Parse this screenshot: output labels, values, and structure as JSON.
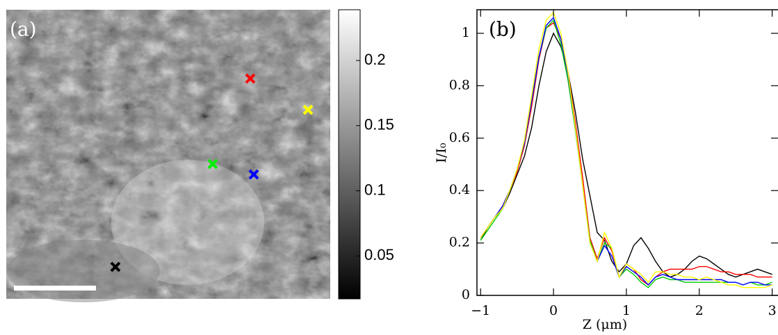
{
  "chart_data": [
    {
      "type": "image",
      "panel_label": "(a)",
      "colormap": [
        "#000000",
        "#ffffff"
      ],
      "zlim": [
        0.017,
        0.239
      ],
      "zticks": [
        0.05,
        0.1,
        0.15,
        0.2
      ]
    },
    {
      "type": "line",
      "panel_label": "(b)",
      "xlabel": "Z (μm)",
      "ylabel": "I/I₀",
      "x": [
        -1.0,
        -0.9,
        -0.8,
        -0.7,
        -0.6,
        -0.5,
        -0.4,
        -0.3,
        -0.2,
        -0.1,
        0.0,
        0.1,
        0.2,
        0.3,
        0.4,
        0.5,
        0.6,
        0.7,
        0.8,
        0.9,
        1.0,
        1.1,
        1.2,
        1.3,
        1.4,
        1.5,
        1.6,
        1.7,
        1.8,
        1.9,
        2.0,
        2.1,
        2.2,
        2.3,
        2.4,
        2.5,
        2.6,
        2.7,
        2.8,
        2.9,
        3.0
      ],
      "series": [
        {
          "color": "#000000",
          "values": [
            0.21,
            0.26,
            0.3,
            0.33,
            0.39,
            0.46,
            0.53,
            0.64,
            0.8,
            0.93,
            1.0,
            0.95,
            0.85,
            0.7,
            0.52,
            0.38,
            0.24,
            0.21,
            0.13,
            0.09,
            0.12,
            0.19,
            0.22,
            0.18,
            0.13,
            0.09,
            0.07,
            0.08,
            0.1,
            0.13,
            0.15,
            0.14,
            0.12,
            0.1,
            0.08,
            0.07,
            0.08,
            0.09,
            0.1,
            0.09,
            0.08
          ]
        },
        {
          "color": "#ff0000",
          "values": [
            0.22,
            0.26,
            0.3,
            0.34,
            0.4,
            0.47,
            0.57,
            0.72,
            0.9,
            1.02,
            1.04,
            0.98,
            0.85,
            0.66,
            0.45,
            0.22,
            0.14,
            0.22,
            0.17,
            0.07,
            0.12,
            0.1,
            0.06,
            0.04,
            0.07,
            0.09,
            0.1,
            0.1,
            0.1,
            0.1,
            0.11,
            0.11,
            0.1,
            0.09,
            0.09,
            0.08,
            0.08,
            0.08,
            0.07,
            0.07,
            0.07
          ]
        },
        {
          "color": "#00cc00",
          "values": [
            0.21,
            0.25,
            0.29,
            0.33,
            0.4,
            0.48,
            0.58,
            0.74,
            0.91,
            1.02,
            1.05,
            0.96,
            0.82,
            0.63,
            0.42,
            0.21,
            0.13,
            0.2,
            0.18,
            0.07,
            0.1,
            0.08,
            0.05,
            0.03,
            0.06,
            0.07,
            0.06,
            0.06,
            0.05,
            0.05,
            0.05,
            0.05,
            0.05,
            0.05,
            0.05,
            0.05,
            0.04,
            0.05,
            0.04,
            0.04,
            0.05
          ]
        },
        {
          "color": "#0000ff",
          "values": [
            0.22,
            0.26,
            0.3,
            0.34,
            0.4,
            0.48,
            0.58,
            0.74,
            0.91,
            1.03,
            1.06,
            0.98,
            0.84,
            0.64,
            0.42,
            0.2,
            0.13,
            0.19,
            0.15,
            0.07,
            0.11,
            0.09,
            0.07,
            0.04,
            0.07,
            0.08,
            0.07,
            0.06,
            0.06,
            0.06,
            0.06,
            0.06,
            0.06,
            0.06,
            0.05,
            0.05,
            0.04,
            0.05,
            0.05,
            0.04,
            0.04
          ]
        },
        {
          "color": "#ffff00",
          "values": [
            0.22,
            0.26,
            0.3,
            0.33,
            0.4,
            0.48,
            0.59,
            0.76,
            0.94,
            1.05,
            1.08,
            1.0,
            0.85,
            0.64,
            0.42,
            0.2,
            0.13,
            0.24,
            0.18,
            0.07,
            0.12,
            0.1,
            0.08,
            0.05,
            0.09,
            0.09,
            0.08,
            0.08,
            0.07,
            0.07,
            0.06,
            0.07,
            0.06,
            0.05,
            0.04,
            0.04,
            0.03,
            0.03,
            0.03,
            0.03,
            0.04
          ]
        }
      ],
      "xlim": [
        -1.05,
        3.08
      ],
      "ylim": [
        0,
        1.09
      ],
      "xticks": [
        {
          "value": -1,
          "label": "−1"
        },
        0,
        1,
        2,
        3
      ],
      "yticks": [
        0,
        0.2,
        0.4,
        0.6,
        0.8,
        1
      ]
    }
  ]
}
